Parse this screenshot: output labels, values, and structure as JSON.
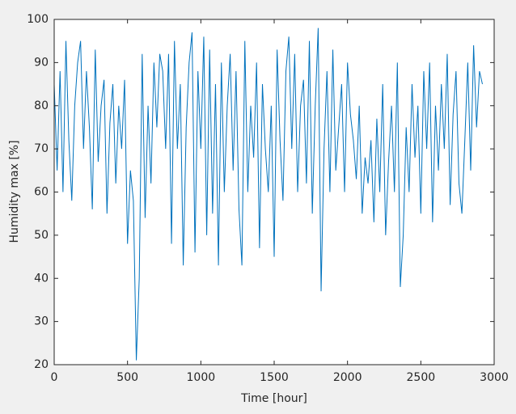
{
  "chart_data": {
    "type": "line",
    "xlabel": "Time [hour]",
    "ylabel": "Humidity max [%]",
    "xlim": [
      0,
      3000
    ],
    "xticks": [
      0,
      500,
      1000,
      1500,
      2000,
      2500,
      3000
    ],
    "ylim": [
      20,
      100
    ],
    "yticks": [
      20,
      30,
      40,
      50,
      60,
      70,
      80,
      90,
      100
    ],
    "grid": false,
    "series": [
      {
        "color": "#0072bd",
        "x": [
          0,
          20,
          40,
          60,
          80,
          100,
          120,
          140,
          160,
          180,
          200,
          220,
          240,
          260,
          280,
          300,
          320,
          340,
          360,
          380,
          400,
          420,
          440,
          460,
          480,
          500,
          520,
          540,
          560,
          580,
          600,
          620,
          640,
          660,
          680,
          700,
          720,
          740,
          760,
          780,
          800,
          820,
          840,
          860,
          880,
          900,
          920,
          940,
          960,
          980,
          1000,
          1020,
          1040,
          1060,
          1080,
          1100,
          1120,
          1140,
          1160,
          1180,
          1200,
          1220,
          1240,
          1260,
          1280,
          1300,
          1320,
          1340,
          1360,
          1380,
          1400,
          1420,
          1440,
          1460,
          1480,
          1500,
          1520,
          1540,
          1560,
          1580,
          1600,
          1620,
          1640,
          1660,
          1680,
          1700,
          1720,
          1740,
          1760,
          1780,
          1800,
          1820,
          1840,
          1860,
          1880,
          1900,
          1920,
          1940,
          1960,
          1980,
          2000,
          2020,
          2040,
          2060,
          2080,
          2100,
          2120,
          2140,
          2160,
          2180,
          2200,
          2220,
          2240,
          2260,
          2280,
          2300,
          2320,
          2340,
          2360,
          2380,
          2400,
          2420,
          2440,
          2460,
          2480,
          2500,
          2520,
          2540,
          2560,
          2580,
          2600,
          2620,
          2640,
          2660,
          2680,
          2700,
          2720,
          2740,
          2760,
          2780,
          2800,
          2820,
          2840,
          2860,
          2880,
          2900,
          2920
        ],
        "values": [
          85,
          65,
          88,
          60,
          95,
          72,
          58,
          80,
          90,
          95,
          70,
          88,
          75,
          56,
          93,
          67,
          80,
          86,
          55,
          76,
          85,
          62,
          80,
          70,
          86,
          48,
          65,
          58,
          21,
          40,
          92,
          54,
          80,
          62,
          90,
          75,
          92,
          88,
          70,
          92,
          48,
          95,
          70,
          85,
          43,
          75,
          90,
          97,
          46,
          88,
          70,
          96,
          50,
          93,
          55,
          85,
          43,
          90,
          60,
          80,
          92,
          65,
          88,
          56,
          43,
          95,
          60,
          80,
          68,
          90,
          47,
          85,
          70,
          60,
          80,
          45,
          93,
          72,
          58,
          88,
          96,
          70,
          92,
          60,
          80,
          86,
          62,
          95,
          55,
          80,
          98,
          37,
          70,
          88,
          60,
          93,
          65,
          75,
          85,
          60,
          90,
          78,
          72,
          63,
          80,
          55,
          68,
          62,
          72,
          53,
          77,
          60,
          85,
          50,
          67,
          80,
          60,
          90,
          38,
          50,
          75,
          60,
          85,
          68,
          80,
          55,
          88,
          70,
          90,
          53,
          80,
          65,
          85,
          70,
          92,
          57,
          78,
          88,
          62,
          55,
          72,
          90,
          65,
          94,
          75,
          88,
          85
        ]
      }
    ]
  }
}
